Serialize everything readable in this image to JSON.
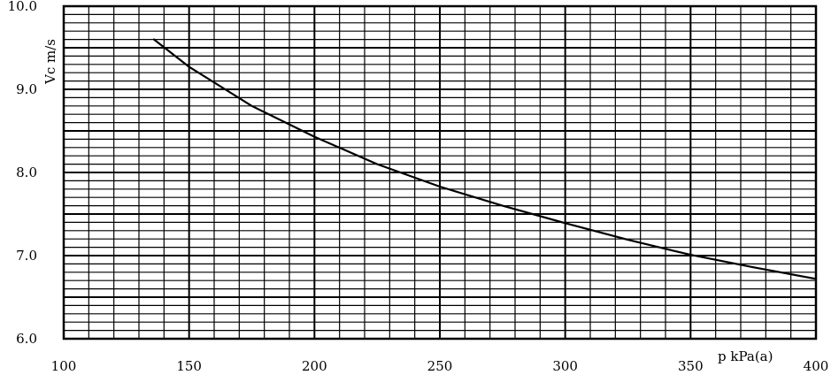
{
  "chart_data": {
    "type": "line",
    "title": "",
    "xlabel": "p kPa(a)",
    "ylabel": "Vc m/s",
    "xlim": [
      100,
      400
    ],
    "ylim": [
      6.0,
      10.0
    ],
    "grid": true,
    "x_ticks": [
      100,
      150,
      200,
      250,
      300,
      350,
      400
    ],
    "x_tick_labels": [
      "100",
      "150",
      "200",
      "250",
      "300",
      "350",
      "400"
    ],
    "y_ticks": [
      6.0,
      7.0,
      8.0,
      9.0,
      10.0
    ],
    "y_tick_labels": [
      "6.0",
      "7.0",
      "8.0",
      "9.0",
      "10.0"
    ],
    "series": [
      {
        "x": [
          136,
          150,
          175,
          200,
          225,
          250,
          275,
          300,
          325,
          350,
          375,
          400
        ],
        "y": [
          9.6,
          9.27,
          8.8,
          8.43,
          8.1,
          7.83,
          7.6,
          7.39,
          7.19,
          7.01,
          6.86,
          6.72
        ]
      }
    ]
  }
}
